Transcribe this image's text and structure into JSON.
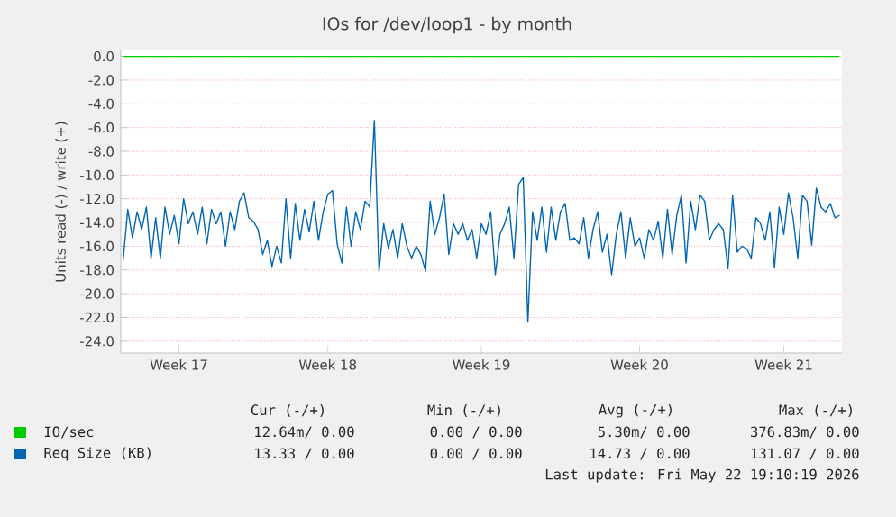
{
  "chart_data": {
    "type": "line",
    "title": "IOs for /dev/loop1 - by month",
    "ylabel": "Units read (-) / write (+)",
    "ylim": [
      -25,
      0.5
    ],
    "categories": [
      null,
      null,
      null,
      null,
      null,
      null,
      null,
      null,
      null,
      null,
      null,
      null,
      "Week 17",
      null,
      null,
      null,
      null,
      null,
      null,
      null,
      null,
      null,
      null,
      null,
      null,
      null,
      null,
      null,
      null,
      null,
      null,
      null,
      null,
      null,
      null,
      null,
      null,
      null,
      null,
      null,
      null,
      null,
      null,
      null,
      "Week 18",
      null,
      null,
      null,
      null,
      null,
      null,
      null,
      null,
      null,
      null,
      null,
      null,
      null,
      null,
      null,
      null,
      null,
      null,
      null,
      null,
      null,
      null,
      null,
      null,
      null,
      null,
      null,
      null,
      null,
      null,
      null,
      null,
      "Week 19",
      null,
      null,
      null,
      null,
      null,
      null,
      null,
      null,
      null,
      null,
      null,
      null,
      null,
      null,
      null,
      null,
      null,
      null,
      null,
      null,
      null,
      null,
      null,
      null,
      null,
      null,
      null,
      null,
      null,
      null,
      null,
      null,
      null,
      "Week 20",
      null,
      null,
      null,
      null,
      null,
      null,
      null,
      null,
      null,
      null,
      null,
      null,
      null,
      null,
      null,
      null,
      null,
      null,
      null,
      null,
      null,
      null,
      null,
      null,
      null,
      null,
      null,
      null,
      null,
      null,
      "Week 21",
      null,
      null,
      null,
      null,
      null,
      null,
      null,
      null,
      null,
      null,
      null,
      null
    ],
    "yticks": [
      {
        "value": 0,
        "label": "0.0"
      },
      {
        "value": -2,
        "label": "-2.0"
      },
      {
        "value": -4,
        "label": "-4.0"
      },
      {
        "value": -6,
        "label": "-6.0"
      },
      {
        "value": -8,
        "label": "-8.0"
      },
      {
        "value": -10,
        "label": "-10.0"
      },
      {
        "value": -12,
        "label": "-12.0"
      },
      {
        "value": -14,
        "label": "-14.0"
      },
      {
        "value": -16,
        "label": "-16.0"
      },
      {
        "value": -18,
        "label": "-18.0"
      },
      {
        "value": -20,
        "label": "-20.0"
      },
      {
        "value": -22,
        "label": "-22.0"
      },
      {
        "value": -24,
        "label": "-24.0"
      }
    ],
    "grid": "y",
    "legend": "bottom",
    "series": [
      {
        "name": "IO/sec",
        "color": "#00cc00",
        "values": [
          0,
          0,
          0,
          0,
          0,
          0,
          0,
          0,
          0,
          0,
          0,
          0,
          0,
          0,
          0,
          0,
          0,
          0,
          0,
          0,
          0,
          0,
          0,
          0,
          0,
          0,
          0,
          0,
          0,
          0,
          0,
          0,
          0,
          0,
          0,
          0,
          0,
          0,
          0,
          0,
          0,
          0,
          0,
          0,
          0,
          0,
          0,
          0,
          0,
          0,
          0,
          0,
          0,
          0,
          0,
          0,
          0,
          0,
          0,
          0,
          0,
          0,
          0,
          0,
          0,
          0,
          0,
          0,
          0,
          0,
          0,
          0,
          0,
          0,
          0,
          0,
          0,
          0,
          0,
          0,
          0,
          0,
          0,
          0,
          0,
          0,
          0,
          0,
          0,
          0,
          0,
          0,
          0,
          0,
          0,
          0,
          0,
          0,
          0,
          0,
          0,
          0,
          0,
          0,
          0,
          0,
          0,
          0,
          0,
          0,
          0,
          0,
          0,
          0,
          0,
          0,
          0,
          0,
          0,
          0,
          0,
          0,
          0,
          0,
          0,
          0,
          0,
          0,
          0,
          0,
          0,
          0,
          0,
          0,
          0,
          0,
          0,
          0,
          0,
          0,
          0,
          0,
          0,
          0,
          0,
          0,
          0,
          0,
          0,
          0,
          0,
          0,
          0,
          0,
          0
        ]
      },
      {
        "name": "Req Size (KB)",
        "color": "#0066b3",
        "values": [
          -17.2,
          -12.9,
          -15.3,
          -13.1,
          -14.6,
          -12.7,
          -17.0,
          -13.6,
          -17.0,
          -12.7,
          -15.0,
          -13.4,
          -15.8,
          -12.0,
          -14.1,
          -13.1,
          -15.0,
          -12.7,
          -15.8,
          -12.9,
          -14.1,
          -13.1,
          -16.0,
          -13.1,
          -14.6,
          -12.2,
          -11.5,
          -13.6,
          -13.9,
          -14.6,
          -16.7,
          -15.5,
          -17.7,
          -16.0,
          -17.4,
          -12.0,
          -17.0,
          -12.4,
          -15.5,
          -12.9,
          -14.8,
          -12.2,
          -15.5,
          -13.1,
          -11.6,
          -11.3,
          -15.8,
          -17.4,
          -12.7,
          -16.0,
          -13.1,
          -14.6,
          -12.2,
          -12.7,
          -5.4,
          -18.1,
          -14.1,
          -16.2,
          -14.6,
          -17.0,
          -14.1,
          -16.0,
          -17.0,
          -16.0,
          -16.7,
          -18.1,
          -12.2,
          -15.0,
          -13.6,
          -11.6,
          -16.7,
          -14.1,
          -15.0,
          -14.1,
          -15.5,
          -14.6,
          -17.0,
          -14.1,
          -15.0,
          -13.1,
          -18.4,
          -15.0,
          -14.1,
          -12.7,
          -17.0,
          -10.8,
          -10.2,
          -22.4,
          -13.1,
          -15.5,
          -12.7,
          -16.5,
          -12.7,
          -15.5,
          -13.1,
          -12.4,
          -15.5,
          -15.3,
          -15.8,
          -13.6,
          -17.0,
          -14.6,
          -13.1,
          -16.5,
          -15.0,
          -18.4,
          -15.0,
          -13.1,
          -17.0,
          -13.6,
          -16.0,
          -15.3,
          -17.0,
          -14.6,
          -15.5,
          -13.9,
          -17.0,
          -12.9,
          -16.7,
          -13.4,
          -11.7,
          -17.4,
          -12.2,
          -14.6,
          -11.7,
          -12.2,
          -15.5,
          -14.6,
          -14.1,
          -14.6,
          -17.9,
          -11.7,
          -16.5,
          -16.0,
          -16.2,
          -17.0,
          -13.6,
          -14.1,
          -15.5,
          -13.1,
          -17.8,
          -12.7,
          -15.0,
          -11.5,
          -13.6,
          -17.0,
          -11.7,
          -12.2,
          -15.9,
          -11.1,
          -12.7,
          -13.1,
          -12.4,
          -13.6,
          -13.4
        ]
      }
    ],
    "annotations": [
      "Cur (-/+)",
      "Min (-/+)",
      "Avg (-/+)",
      "Max (-/+)",
      "12.64m/ 0.00",
      "0.00 / 0.00",
      "5.30m/ 0.00",
      "376.83m/ 0.00",
      "13.33 / 0.00",
      "0.00 / 0.00",
      "14.73 / 0.00",
      "131.07 / 0.00",
      "Last update: Fri May 22 19:10:19 2026"
    ]
  }
}
